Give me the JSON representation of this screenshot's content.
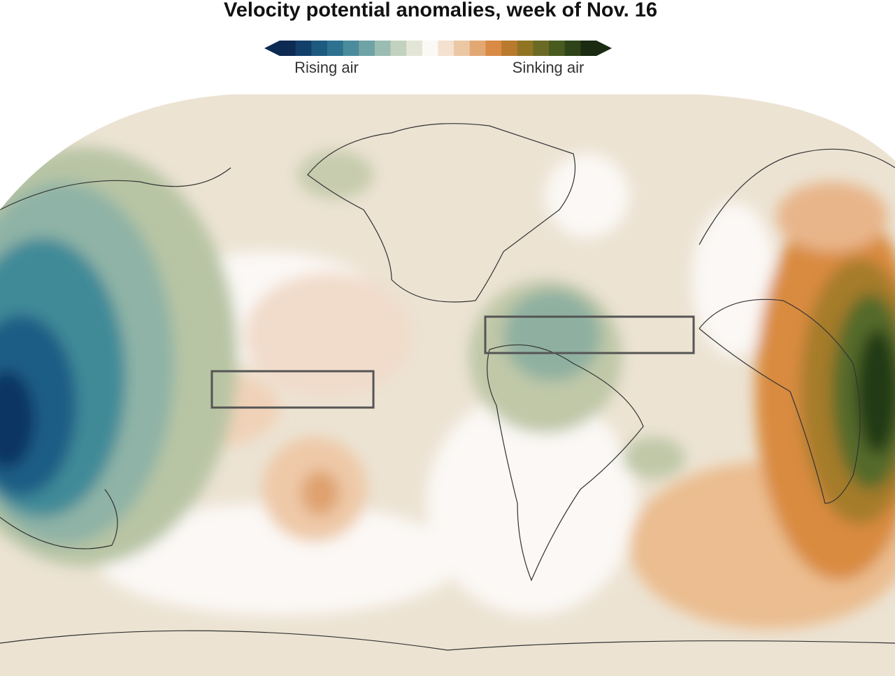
{
  "header": {
    "title": "Velocity potential anomalies, week of Nov. 16"
  },
  "legend": {
    "low_label": "Rising air",
    "high_label": "Sinking air"
  }
}
